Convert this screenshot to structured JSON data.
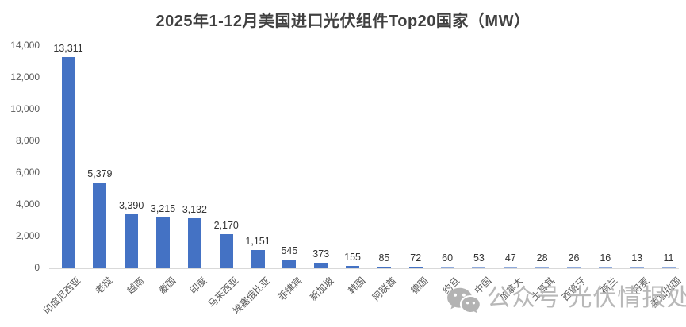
{
  "watermark": {
    "icon": "wechat-icon",
    "text": "公众号 光伏情报处",
    "color": "#b8b8b8"
  },
  "chart_data": {
    "type": "bar",
    "title": "2025年1-12月美国进口光伏组件Top20国家（MW）",
    "xlabel": "",
    "ylabel": "",
    "categories": [
      "印度尼西亚",
      "老挝",
      "越南",
      "泰国",
      "印度",
      "马来西亚",
      "埃塞俄比亚",
      "菲律宾",
      "新加坡",
      "韩国",
      "阿联酋",
      "德国",
      "约旦",
      "中国",
      "加拿大",
      "土耳其",
      "西班牙",
      "荷兰",
      "丹麦",
      "孟加拉国"
    ],
    "values": [
      13311,
      5379,
      3390,
      3215,
      3132,
      2170,
      1151,
      545,
      373,
      155,
      85,
      72,
      60,
      53,
      47,
      28,
      26,
      16,
      13,
      11
    ],
    "value_labels": [
      "13,311",
      "5,379",
      "3,390",
      "3,215",
      "3,132",
      "2,170",
      "1,151",
      "545",
      "373",
      "155",
      "85",
      "72",
      "60",
      "53",
      "47",
      "28",
      "26",
      "16",
      "13",
      "11"
    ],
    "ylim": [
      0,
      14000
    ],
    "ytick_interval": 2000,
    "ytick_labels": [
      "0",
      "2,000",
      "4,000",
      "6,000",
      "8,000",
      "10,000",
      "12,000",
      "14,000"
    ],
    "grid": false,
    "legend": false,
    "colors": {
      "bar_primary": "#4472C4",
      "bar_secondary": "#8FAADC",
      "secondary_from_index": 12,
      "axis_line": "#D9D9D9"
    }
  }
}
